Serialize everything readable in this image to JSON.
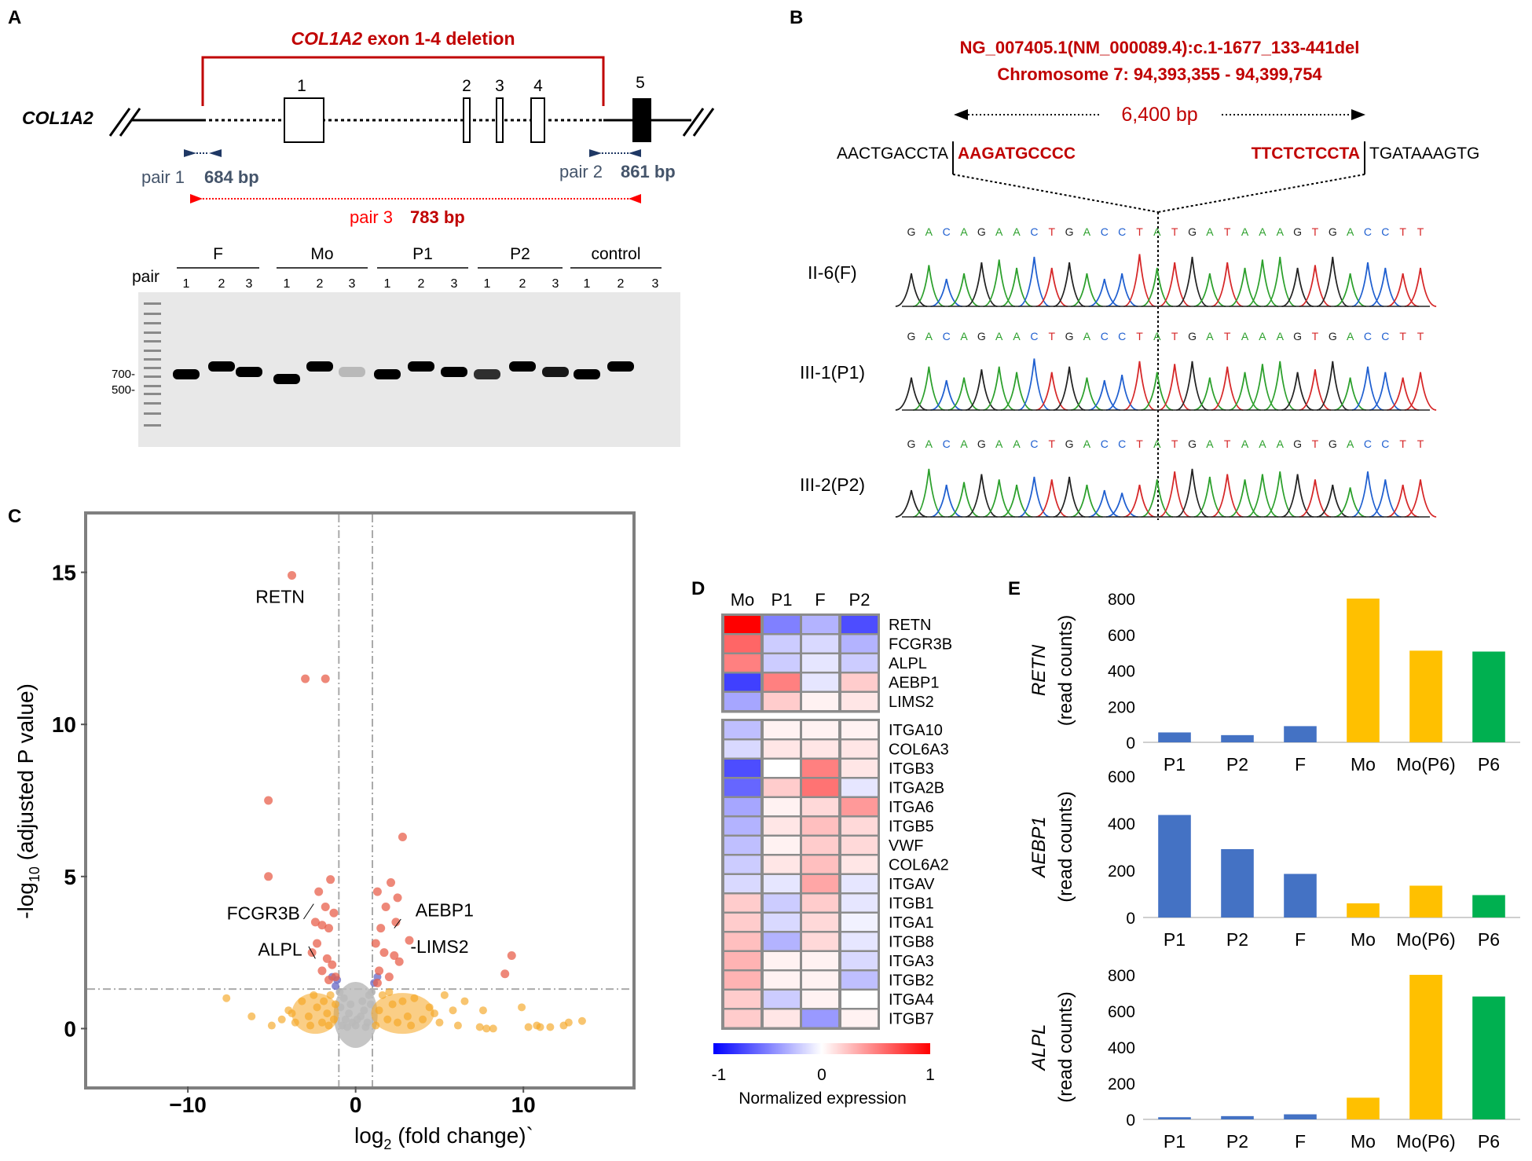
{
  "panel_labels": {
    "a": "A",
    "b": "B",
    "c": "C",
    "d": "D",
    "e": "E"
  },
  "panelA": {
    "deletion_title_gene": "COL1A2",
    "deletion_title_rest": " exon 1-4 deletion",
    "gene_label": "COL1A2",
    "exons": [
      "1",
      "2",
      "3",
      "4",
      "5"
    ],
    "pair1_label": "pair 1",
    "pair1_size": "684 bp",
    "pair2_label": "pair 2",
    "pair2_size": "861 bp",
    "pair3_label": "pair 3",
    "pair3_size": "783 bp",
    "gel_pair_label": "pair",
    "groups": [
      "F",
      "Mo",
      "P1",
      "P2",
      "control"
    ],
    "lane_numbers": [
      "1",
      "2",
      "3"
    ],
    "ladder_700": "700-",
    "ladder_500": "500-"
  },
  "panelB": {
    "hgvs": "NG_007405.1(NM_000089.4):c.1-1677_133-441del",
    "chromosome": "Chromosome 7: 94,393,355 - 94,399,754",
    "span": "6,400 bp",
    "seq_left_black": "AACTGACCTA",
    "seq_left_red": "AAGATGCCCC",
    "seq_right_red": "TTCTCTCCTA",
    "seq_right_black": "TGATAAAGTG",
    "bases": [
      "G",
      "A",
      "C",
      "A",
      "G",
      "A",
      "A",
      "C",
      "T",
      "G",
      "A",
      "C",
      "C",
      "T",
      "A",
      "T",
      "G",
      "A",
      "T",
      "A",
      "A",
      "A",
      "G",
      "T",
      "G",
      "A",
      "C",
      "C",
      "T",
      "T"
    ],
    "samples": [
      "II-6(F)",
      "III-1(P1)",
      "III-2(P2)"
    ],
    "base_colors": {
      "A": "#2ca02c",
      "C": "#1f5fd0",
      "G": "#222222",
      "T": "#d62728"
    }
  },
  "chart_data": [
    {
      "type": "scatter",
      "panel": "C",
      "title": "",
      "xlabel": "log2 (fold change)",
      "ylabel": "-log10 (adjusted P value)",
      "xlim": [
        -16,
        16.5
      ],
      "ylim": [
        -1.9,
        16.9
      ],
      "xticks": [
        "−10",
        "0",
        "10"
      ],
      "xtick_values": [
        -10,
        0,
        10
      ],
      "yticks": [
        "0",
        "5",
        "10",
        "15"
      ],
      "ytick_values": [
        0,
        5,
        10,
        15
      ],
      "threshold_x": [
        -1,
        1
      ],
      "threshold_y": 1.3,
      "labels": [
        {
          "text": "RETN",
          "x": -4.5,
          "y": 14.2
        },
        {
          "text": "FCGR3B",
          "x": -5.5,
          "y": 3.8
        },
        {
          "text": "ALPL",
          "x": -4.5,
          "y": 2.6
        },
        {
          "text": "AEBP1",
          "x": 5.3,
          "y": 3.9
        },
        {
          "text": "-LIMS2",
          "x": 5,
          "y": 2.7
        }
      ],
      "points_up": [
        [
          -3.8,
          14.9
        ],
        [
          -3,
          11.5
        ],
        [
          -1.8,
          11.5
        ],
        [
          -5.2,
          7.5
        ],
        [
          -5.2,
          5
        ],
        [
          2.8,
          6.3
        ],
        [
          -1.5,
          4.9
        ],
        [
          -2.2,
          4.5
        ],
        [
          -1.8,
          4
        ],
        [
          -2.4,
          3.5
        ],
        [
          -2,
          3.4
        ],
        [
          -1.6,
          3.3
        ],
        [
          -1.3,
          3.8
        ],
        [
          -2.3,
          2.8
        ],
        [
          -2.6,
          2.5
        ],
        [
          -1.7,
          2.3
        ],
        [
          -1.4,
          2.1
        ],
        [
          -2,
          1.9
        ],
        [
          -1.2,
          1.7
        ],
        [
          -1.6,
          1.6
        ],
        [
          1.3,
          4.5
        ],
        [
          2.1,
          4.8
        ],
        [
          2.5,
          4.3
        ],
        [
          1.8,
          4
        ],
        [
          2.4,
          3.5
        ],
        [
          1.5,
          3.3
        ],
        [
          1.2,
          2.8
        ],
        [
          1.7,
          2.5
        ],
        [
          2.3,
          2.4
        ],
        [
          2.6,
          2.2
        ],
        [
          3.2,
          2.9
        ],
        [
          8.9,
          1.8
        ],
        [
          9.3,
          2.4
        ],
        [
          1.4,
          1.9
        ],
        [
          2,
          1.7
        ],
        [
          1.3,
          1.5
        ]
      ],
      "points_down": [
        [
          -1.1,
          1.6
        ],
        [
          -1.4,
          1.7
        ],
        [
          1.1,
          1.5
        ],
        [
          1.3,
          1.7
        ],
        [
          -1.2,
          1.4
        ]
      ],
      "points_ns_fc": [
        [
          -7.7,
          1
        ],
        [
          -6.2,
          0.4
        ],
        [
          -5,
          0.1
        ],
        [
          -4,
          0.6
        ],
        [
          -3.6,
          0.2
        ],
        [
          -3.2,
          0.9
        ],
        [
          -2.8,
          0.4
        ],
        [
          -2.5,
          1.1
        ],
        [
          -2.3,
          0.7
        ],
        [
          -2,
          0.2
        ],
        [
          -1.9,
          0.9
        ],
        [
          -1.7,
          0.5
        ],
        [
          -1.5,
          1.1
        ],
        [
          -1.3,
          0.3
        ],
        [
          -1.2,
          0.8
        ],
        [
          -3.8,
          0.5
        ],
        [
          -4.4,
          0.3
        ],
        [
          -2.7,
          0.1
        ],
        [
          -1.6,
          0.1
        ],
        [
          1.2,
          0.1
        ],
        [
          1.4,
          0.6
        ],
        [
          1.6,
          1.1
        ],
        [
          1.9,
          0.3
        ],
        [
          2.2,
          0.8
        ],
        [
          2.5,
          0.2
        ],
        [
          2.8,
          0.9
        ],
        [
          3.1,
          0.4
        ],
        [
          3.5,
          1
        ],
        [
          4,
          0.3
        ],
        [
          4.4,
          0.7
        ],
        [
          5,
          0.2
        ],
        [
          5.8,
          0.6
        ],
        [
          6.5,
          0.9
        ],
        [
          7.4,
          0.05
        ],
        [
          7.8,
          0
        ],
        [
          8.2,
          0
        ],
        [
          7.6,
          0.6
        ],
        [
          9.9,
          0.7
        ],
        [
          10.3,
          0.05
        ],
        [
          10.8,
          0.1
        ],
        [
          11,
          0.05
        ],
        [
          11.6,
          0.05
        ],
        [
          12.4,
          0.1
        ],
        [
          12.7,
          0.2
        ],
        [
          13.5,
          0.25
        ],
        [
          2,
          1.2
        ],
        [
          3.3,
          0.1
        ],
        [
          4.7,
          0.5
        ],
        [
          5.3,
          1.1
        ],
        [
          6.1,
          0.1
        ]
      ],
      "points_ns": [
        [
          -0.8,
          0.1
        ],
        [
          -0.6,
          0.3
        ],
        [
          -0.4,
          0.5
        ],
        [
          -0.2,
          0.2
        ],
        [
          0,
          0.1
        ],
        [
          0.3,
          0.4
        ],
        [
          0.5,
          0.6
        ],
        [
          0.7,
          0.2
        ],
        [
          0.9,
          0.8
        ],
        [
          -0.9,
          0.7
        ],
        [
          -0.7,
          1
        ],
        [
          0.8,
          1.1
        ],
        [
          0.4,
          0.9
        ],
        [
          -0.3,
          0.8
        ],
        [
          0.1,
          0.3
        ],
        [
          -0.5,
          0.05
        ],
        [
          0.6,
          0.05
        ],
        [
          -0.95,
          1.2
        ],
        [
          0.95,
          1.2
        ]
      ]
    },
    {
      "type": "heatmap",
      "panel": "D",
      "columns": [
        "Mo",
        "P1",
        "F",
        "P2"
      ],
      "rows_block1": [
        "RETN",
        "FCGR3B",
        "ALPL",
        "AEBP1",
        "LIMS2"
      ],
      "values_block1": [
        [
          1,
          -0.5,
          -0.3,
          -0.7
        ],
        [
          0.6,
          -0.2,
          -0.15,
          -0.3
        ],
        [
          0.5,
          -0.2,
          -0.1,
          -0.2
        ],
        [
          -0.75,
          0.5,
          -0.1,
          0.2
        ],
        [
          -0.35,
          0.2,
          0.05,
          0.1
        ]
      ],
      "rows_block2": [
        "ITGA10",
        "COL6A3",
        "ITGB3",
        "ITGA2B",
        "ITGA6",
        "ITGB5",
        "VWF",
        "COL6A2",
        "ITGAV",
        "ITGB1",
        "ITGA1",
        "ITGB8",
        "ITGA3",
        "ITGB2",
        "ITGA4",
        "ITGB7"
      ],
      "values_block2": [
        [
          -0.25,
          0.05,
          0.05,
          0.05
        ],
        [
          -0.15,
          0.1,
          0.1,
          0.1
        ],
        [
          -0.7,
          0,
          0.5,
          0.1
        ],
        [
          -0.6,
          0.2,
          0.55,
          -0.1
        ],
        [
          -0.35,
          0.05,
          0.15,
          0.4
        ],
        [
          -0.3,
          0.1,
          0.25,
          0.15
        ],
        [
          -0.25,
          0.05,
          0.2,
          0.15
        ],
        [
          -0.2,
          0.1,
          0.25,
          0.1
        ],
        [
          -0.15,
          -0.1,
          0.35,
          -0.1
        ],
        [
          0.2,
          -0.2,
          0.2,
          -0.1
        ],
        [
          0.2,
          -0.15,
          0.15,
          -0.05
        ],
        [
          0.25,
          -0.3,
          0.15,
          -0.1
        ],
        [
          0.3,
          0.05,
          0.05,
          -0.15
        ],
        [
          0.3,
          0.05,
          0.05,
          -0.25
        ],
        [
          0.2,
          -0.2,
          0.05,
          0
        ],
        [
          0.2,
          0.1,
          -0.4,
          0.05
        ]
      ],
      "colorbar_min": "-1",
      "colorbar_mid": "0",
      "colorbar_max": "1",
      "colorbar_label": "Normalized expression"
    },
    {
      "type": "bar",
      "panel": "E-RETN",
      "ylabel_gene": "RETN",
      "ylabel_units": "(read counts)",
      "categories": [
        "P1",
        "P2",
        "F",
        "Mo",
        "Mo(P6)",
        "P6"
      ],
      "values": [
        55,
        40,
        90,
        800,
        510,
        505
      ],
      "colors": [
        "#4472c4",
        "#4472c4",
        "#4472c4",
        "#ffc000",
        "#ffc000",
        "#00b050"
      ],
      "ylim": [
        0,
        800
      ],
      "yticks": [
        "0",
        "200",
        "400",
        "600",
        "800"
      ]
    },
    {
      "type": "bar",
      "panel": "E-AEBP1",
      "ylabel_gene": "AEBP1",
      "ylabel_units": "(read counts)",
      "categories": [
        "P1",
        "P2",
        "F",
        "Mo",
        "Mo(P6)",
        "P6"
      ],
      "values": [
        435,
        290,
        185,
        60,
        135,
        95
      ],
      "colors": [
        "#4472c4",
        "#4472c4",
        "#4472c4",
        "#ffc000",
        "#ffc000",
        "#00b050"
      ],
      "ylim": [
        0,
        600
      ],
      "yticks": [
        "0",
        "200",
        "400",
        "600"
      ]
    },
    {
      "type": "bar",
      "panel": "E-ALPL",
      "ylabel_gene": "ALPL",
      "ylabel_units": "(read counts)",
      "categories": [
        "P1",
        "P2",
        "F",
        "Mo",
        "Mo(P6)",
        "P6"
      ],
      "values": [
        12,
        18,
        28,
        120,
        800,
        680
      ],
      "colors": [
        "#4472c4",
        "#4472c4",
        "#4472c4",
        "#ffc000",
        "#ffc000",
        "#00b050"
      ],
      "ylim": [
        0,
        800
      ],
      "yticks": [
        "0",
        "200",
        "400",
        "600",
        "800"
      ]
    }
  ]
}
